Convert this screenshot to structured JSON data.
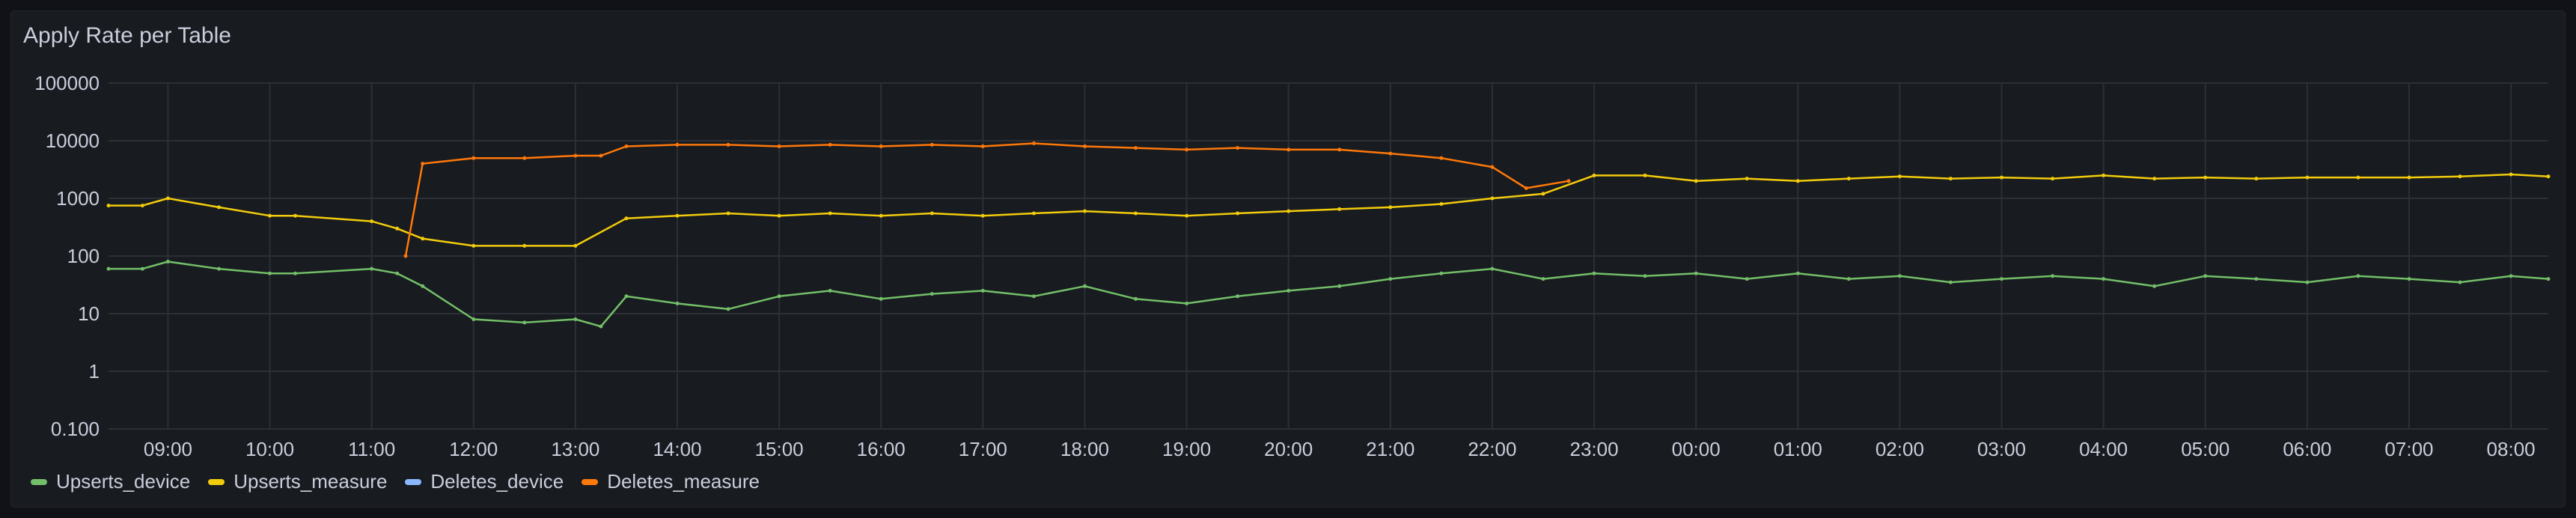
{
  "panel": {
    "title": "Apply Rate per Table"
  },
  "colors": {
    "Upserts_device": "#73bf69",
    "Upserts_measure": "#f2cc0c",
    "Deletes_device": "#8ab8ff",
    "Deletes_measure": "#ff780a"
  },
  "chart_data": {
    "type": "line",
    "title": "Apply Rate per Table",
    "yscale": "log",
    "ylim": [
      0.1,
      100000
    ],
    "yticks": [
      "0.100",
      "1",
      "10",
      "100",
      "1000",
      "10000",
      "100000"
    ],
    "xlim": [
      "08:25",
      "08:22"
    ],
    "xticks": [
      "09:00",
      "10:00",
      "11:00",
      "12:00",
      "13:00",
      "14:00",
      "15:00",
      "16:00",
      "17:00",
      "18:00",
      "19:00",
      "20:00",
      "21:00",
      "22:00",
      "23:00",
      "00:00",
      "01:00",
      "02:00",
      "03:00",
      "04:00",
      "05:00",
      "06:00",
      "07:00",
      "08:00"
    ],
    "grid": true,
    "legend": "bottom-left",
    "series": [
      {
        "name": "Upserts_device",
        "x": [
          "08:25",
          "08:45",
          "09:00",
          "09:30",
          "10:00",
          "10:15",
          "11:00",
          "11:15",
          "11:30",
          "12:00",
          "12:30",
          "13:00",
          "13:15",
          "13:30",
          "14:00",
          "14:30",
          "15:00",
          "15:30",
          "16:00",
          "16:30",
          "17:00",
          "17:30",
          "18:00",
          "18:30",
          "19:00",
          "19:30",
          "20:00",
          "20:30",
          "21:00",
          "21:30",
          "22:00",
          "22:30",
          "23:00",
          "23:30",
          "00:00",
          "00:30",
          "01:00",
          "01:30",
          "02:00",
          "02:30",
          "03:00",
          "03:30",
          "04:00",
          "04:30",
          "05:00",
          "05:30",
          "06:00",
          "06:30",
          "07:00",
          "07:30",
          "08:00",
          "08:22"
        ],
        "values": [
          60,
          60,
          80,
          60,
          50,
          50,
          60,
          50,
          30,
          8,
          7,
          8,
          6,
          20,
          15,
          12,
          20,
          25,
          18,
          22,
          25,
          20,
          30,
          18,
          15,
          20,
          25,
          30,
          40,
          50,
          60,
          40,
          50,
          45,
          50,
          40,
          50,
          40,
          45,
          35,
          40,
          45,
          40,
          30,
          45,
          40,
          35,
          45,
          40,
          35,
          45,
          40
        ]
      },
      {
        "name": "Upserts_measure",
        "x": [
          "08:25",
          "08:45",
          "09:00",
          "09:30",
          "10:00",
          "10:15",
          "11:00",
          "11:15",
          "11:30",
          "12:00",
          "12:30",
          "13:00",
          "13:30",
          "14:00",
          "14:30",
          "15:00",
          "15:30",
          "16:00",
          "16:30",
          "17:00",
          "17:30",
          "18:00",
          "18:30",
          "19:00",
          "19:30",
          "20:00",
          "20:30",
          "21:00",
          "21:30",
          "22:00",
          "22:30",
          "23:00",
          "23:30",
          "00:00",
          "00:30",
          "01:00",
          "01:30",
          "02:00",
          "02:30",
          "03:00",
          "03:30",
          "04:00",
          "04:30",
          "05:00",
          "05:30",
          "06:00",
          "06:30",
          "07:00",
          "07:30",
          "08:00",
          "08:22"
        ],
        "values": [
          750,
          750,
          1000,
          700,
          500,
          500,
          400,
          300,
          200,
          150,
          150,
          150,
          450,
          500,
          550,
          500,
          550,
          500,
          550,
          500,
          550,
          600,
          550,
          500,
          550,
          600,
          650,
          700,
          800,
          1000,
          1200,
          2500,
          2500,
          2000,
          2200,
          2000,
          2200,
          2400,
          2200,
          2300,
          2200,
          2500,
          2200,
          2300,
          2200,
          2300,
          2300,
          2300,
          2400,
          2600,
          2400
        ]
      },
      {
        "name": "Deletes_device",
        "x": [],
        "values": []
      },
      {
        "name": "Deletes_measure",
        "x": [
          "11:20",
          "11:30",
          "12:00",
          "12:30",
          "13:00",
          "13:15",
          "13:30",
          "14:00",
          "14:30",
          "15:00",
          "15:30",
          "16:00",
          "16:30",
          "17:00",
          "17:30",
          "18:00",
          "18:30",
          "19:00",
          "19:30",
          "20:00",
          "20:30",
          "21:00",
          "21:30",
          "22:00",
          "22:20",
          "22:45"
        ],
        "values": [
          100,
          4000,
          5000,
          5000,
          5500,
          5500,
          8000,
          8500,
          8500,
          8000,
          8500,
          8000,
          8500,
          8000,
          9000,
          8000,
          7500,
          7000,
          7500,
          7000,
          7000,
          6000,
          5000,
          3500,
          1500,
          2000
        ]
      }
    ]
  }
}
